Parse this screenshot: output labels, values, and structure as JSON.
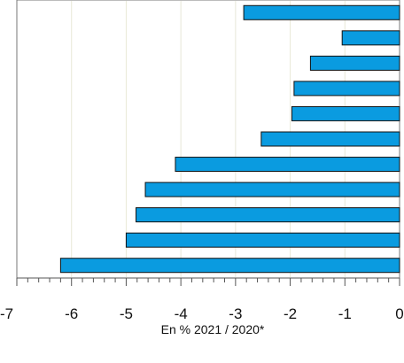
{
  "chart_data": {
    "type": "bar",
    "orientation": "horizontal",
    "xlabel": "En % 2021 / 2020*",
    "x_ticks": [
      "-7",
      "-6",
      "-5",
      "-4",
      "-3",
      "-2",
      "-1",
      "0"
    ],
    "xlim": [
      -7,
      0
    ],
    "grid": true,
    "series": [
      {
        "values": [
          -2.85,
          -1.05,
          -1.63,
          -1.93,
          -1.97,
          -2.53,
          -4.1,
          -4.65,
          -4.82,
          -5.0,
          -6.2
        ]
      }
    ],
    "colors": {
      "bar_fill": "#0a9be0",
      "bar_stroke": "#111111",
      "grid": "#e8e8d8",
      "axis": "#555555"
    }
  }
}
